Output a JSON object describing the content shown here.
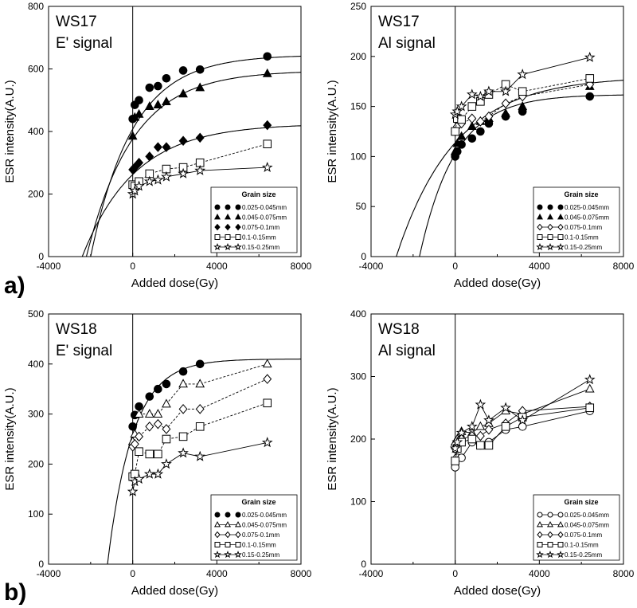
{
  "figure_labels": {
    "a": "a)",
    "b": "b)"
  },
  "legend_title": "Grain size",
  "chart_data": [
    {
      "type": "scatter",
      "id": "ws17-e",
      "title": [
        "WS17",
        "E' signal"
      ],
      "xlabel": "Added dose(Gy)",
      "ylabel": "ESR intensity(A.U.)",
      "xlim": [
        -4000,
        8000
      ],
      "ylim": [
        0,
        800
      ],
      "xticks": [
        -4000,
        0,
        4000,
        8000
      ],
      "yticks": [
        0,
        200,
        400,
        600,
        800
      ],
      "vline": 0,
      "legend_position": "bottom-right",
      "series": [
        {
          "name": "0.025-0.045mm",
          "marker": "circle",
          "fill": true,
          "connect": false,
          "x": [
            0,
            100,
            300,
            800,
            1200,
            1600,
            2400,
            3200,
            6400
          ],
          "y": [
            440,
            485,
            500,
            540,
            545,
            570,
            595,
            598,
            640
          ]
        },
        {
          "name": "0.045-0.075mm",
          "marker": "triangle",
          "fill": true,
          "connect": false,
          "x": [
            0,
            100,
            300,
            800,
            1200,
            1600,
            2400,
            3200,
            6400
          ],
          "y": [
            385,
            445,
            455,
            480,
            485,
            495,
            520,
            540,
            585
          ]
        },
        {
          "name": "0.075-0.1mm",
          "marker": "diamond",
          "fill": true,
          "connect": false,
          "x": [
            0,
            100,
            300,
            800,
            1200,
            1600,
            2400,
            3200,
            6400
          ],
          "y": [
            278,
            285,
            300,
            320,
            350,
            350,
            370,
            380,
            420
          ]
        },
        {
          "name": "0.1-0.15mm",
          "marker": "square",
          "fill": false,
          "connect": true,
          "dash": true,
          "x": [
            0,
            100,
            300,
            800,
            1600,
            2400,
            3200,
            6400
          ],
          "y": [
            230,
            225,
            240,
            265,
            280,
            285,
            300,
            360
          ]
        },
        {
          "name": "0.15-0.25mm",
          "marker": "star",
          "fill": false,
          "connect": true,
          "x": [
            0,
            100,
            300,
            800,
            1200,
            1600,
            2400,
            3200,
            6400
          ],
          "y": [
            200,
            210,
            225,
            240,
            245,
            255,
            265,
            275,
            285
          ]
        }
      ],
      "fits": [
        {
          "a": 645,
          "d": 2000,
          "b": 1550,
          "c": 2000
        },
        {
          "a": 595,
          "d": 2200,
          "b": 1300,
          "c": 2200
        },
        {
          "a": 425,
          "d": 2400,
          "b": 800,
          "c": 2500
        }
      ]
    },
    {
      "type": "scatter",
      "id": "ws17-al",
      "title": [
        "WS17",
        "Al signal"
      ],
      "xlabel": "Added dose(Gy)",
      "ylabel": "ESR intensity(A.U.)",
      "xlim": [
        -4000,
        8000
      ],
      "ylim": [
        0,
        250
      ],
      "xticks": [
        -4000,
        0,
        4000,
        8000
      ],
      "yticks": [
        0,
        50,
        100,
        150,
        200,
        250
      ],
      "vline": 0,
      "legend_position": "bottom-right",
      "series": [
        {
          "name": "0.025-0.045mm",
          "marker": "circle",
          "fill": true,
          "connect": false,
          "x": [
            0,
            100,
            300,
            800,
            1200,
            1600,
            2400,
            3200,
            6400
          ],
          "y": [
            100,
            105,
            112,
            118,
            125,
            133,
            140,
            145,
            160
          ]
        },
        {
          "name": "0.045-0.075mm",
          "marker": "triangle",
          "fill": true,
          "connect": false,
          "x": [
            0,
            100,
            300,
            800,
            1200,
            1600,
            2400,
            3200,
            6400
          ],
          "y": [
            105,
            113,
            120,
            130,
            135,
            138,
            143,
            150,
            170
          ]
        },
        {
          "name": "0.075-0.1mm",
          "marker": "diamond",
          "fill": false,
          "connect": true,
          "dash": true,
          "x": [
            0,
            100,
            300,
            800,
            1200,
            1600,
            2400,
            3200,
            6400
          ],
          "y": [
            125,
            130,
            133,
            138,
            135,
            140,
            153,
            160,
            172
          ]
        },
        {
          "name": "0.1-0.15mm",
          "marker": "square",
          "fill": false,
          "connect": true,
          "dash": true,
          "x": [
            0,
            100,
            300,
            800,
            1200,
            1600,
            2400,
            3200,
            6400
          ],
          "y": [
            125,
            138,
            137,
            150,
            155,
            162,
            172,
            165,
            178
          ]
        },
        {
          "name": "0.15-0.25mm",
          "marker": "star",
          "fill": false,
          "connect": true,
          "x": [
            0,
            100,
            300,
            800,
            1200,
            1600,
            2400,
            3200,
            6400
          ],
          "y": [
            142,
            145,
            150,
            162,
            160,
            165,
            165,
            182,
            199
          ]
        }
      ],
      "fits": [
        {
          "a": 162,
          "d": 1700,
          "b": 62,
          "c": 1700
        },
        {
          "a": 180,
          "d": 2800,
          "b": 75,
          "c": 2800
        }
      ]
    },
    {
      "type": "scatter",
      "id": "ws18-e",
      "title": [
        "WS18",
        "E' signal"
      ],
      "xlabel": "Added dose(Gy)",
      "ylabel": "ESR intensity(A.U.)",
      "xlim": [
        -4000,
        8000
      ],
      "ylim": [
        0,
        500
      ],
      "xticks": [
        -4000,
        0,
        4000,
        8000
      ],
      "yticks": [
        0,
        100,
        200,
        300,
        400,
        500
      ],
      "vline": 0,
      "legend_position": "bottom-right",
      "series": [
        {
          "name": "0.025-0.045mm",
          "marker": "circle",
          "fill": true,
          "connect": false,
          "x": [
            0,
            100,
            300,
            800,
            1200,
            1600,
            2400,
            3200
          ],
          "y": [
            275,
            298,
            315,
            335,
            350,
            360,
            385,
            400
          ]
        },
        {
          "name": "0.045-0.075mm",
          "marker": "triangle",
          "fill": false,
          "connect": true,
          "dash": true,
          "x": [
            0,
            100,
            300,
            800,
            1200,
            1600,
            2400,
            3200,
            6400
          ],
          "y": [
            245,
            260,
            300,
            300,
            300,
            320,
            360,
            360,
            400
          ]
        },
        {
          "name": "0.075-0.1mm",
          "marker": "diamond",
          "fill": false,
          "connect": true,
          "dash": true,
          "x": [
            0,
            100,
            300,
            800,
            1200,
            1600,
            2400,
            3200,
            6400
          ],
          "y": [
            235,
            240,
            255,
            275,
            280,
            270,
            310,
            310,
            370
          ]
        },
        {
          "name": "0.1-0.15mm",
          "marker": "square",
          "fill": false,
          "connect": true,
          "dash": true,
          "x": [
            0,
            100,
            300,
            800,
            1200,
            1600,
            2400,
            3200,
            6400
          ],
          "y": [
            175,
            180,
            225,
            220,
            220,
            250,
            255,
            275,
            322
          ]
        },
        {
          "name": "0.15-0.25mm",
          "marker": "star",
          "fill": false,
          "connect": true,
          "x": [
            0,
            100,
            300,
            800,
            1200,
            1600,
            2400,
            3200,
            6400
          ],
          "y": [
            145,
            165,
            170,
            180,
            180,
            200,
            222,
            215,
            243
          ]
        }
      ],
      "fits": [
        {
          "a": 410,
          "d": 1200,
          "b": 1350,
          "c": 1200
        }
      ]
    },
    {
      "type": "scatter",
      "id": "ws18-al",
      "title": [
        "WS18",
        "Al signal"
      ],
      "xlabel": "Added dose(Gy)",
      "ylabel": "ESR intensity(A.U.)",
      "xlim": [
        -4000,
        8000
      ],
      "ylim": [
        0,
        400
      ],
      "xticks": [
        -4000,
        0,
        4000,
        8000
      ],
      "yticks": [
        0,
        100,
        200,
        300,
        400
      ],
      "vline": 0,
      "legend_position": "bottom-right",
      "series": [
        {
          "name": "0.025-0.045mm",
          "marker": "circle",
          "fill": false,
          "connect": true,
          "x": [
            0,
            100,
            300,
            800,
            1200,
            1600,
            2400,
            3200,
            6400
          ],
          "y": [
            155,
            170,
            170,
            195,
            190,
            195,
            215,
            220,
            245
          ]
        },
        {
          "name": "0.045-0.075mm",
          "marker": "triangle",
          "fill": false,
          "connect": true,
          "x": [
            0,
            100,
            300,
            800,
            1200,
            1600,
            2400,
            3200,
            6400
          ],
          "y": [
            195,
            200,
            212,
            210,
            220,
            225,
            245,
            240,
            280
          ]
        },
        {
          "name": "0.075-0.1mm",
          "marker": "diamond",
          "fill": false,
          "connect": true,
          "x": [
            0,
            100,
            300,
            800,
            1200,
            1600,
            2400,
            3200,
            6400
          ],
          "y": [
            185,
            190,
            200,
            205,
            205,
            215,
            225,
            245,
            252
          ]
        },
        {
          "name": "0.1-0.15mm",
          "marker": "square",
          "fill": false,
          "connect": true,
          "x": [
            0,
            100,
            300,
            800,
            1200,
            1600,
            2400,
            3200,
            6400
          ],
          "y": [
            165,
            185,
            195,
            200,
            190,
            190,
            220,
            235,
            250
          ]
        },
        {
          "name": "0.15-0.25mm",
          "marker": "star",
          "fill": false,
          "connect": true,
          "x": [
            0,
            100,
            300,
            800,
            1200,
            1600,
            2400,
            3200,
            6400
          ],
          "y": [
            185,
            195,
            210,
            220,
            255,
            230,
            250,
            230,
            295
          ]
        }
      ],
      "fits": []
    }
  ]
}
